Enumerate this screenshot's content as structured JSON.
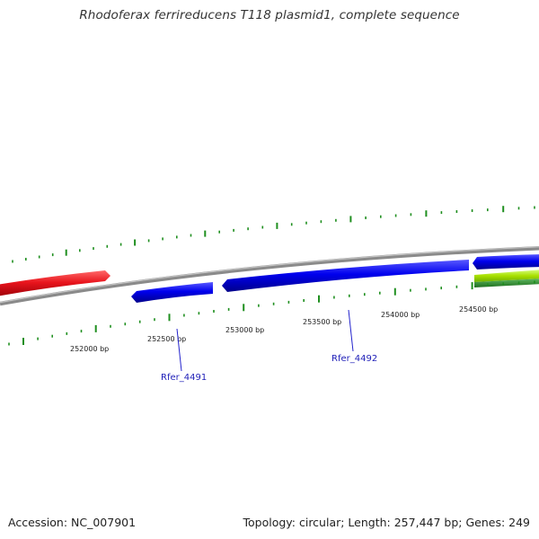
{
  "title": "Rhodoferax ferrireducens T118 plasmid1, complete sequence",
  "footer": {
    "accession": "Accession: NC_007901",
    "summary": "Topology: circular; Length: 257,447 bp; Genes: 249"
  },
  "scale_ticks": [
    {
      "label": "252000 bp",
      "bp": 252000
    },
    {
      "label": "252500 bp",
      "bp": 252500
    },
    {
      "label": "253000 bp",
      "bp": 253000
    },
    {
      "label": "253500 bp",
      "bp": 253500
    },
    {
      "label": "254000 bp",
      "bp": 254000
    },
    {
      "label": "254500 bp",
      "bp": 254500
    }
  ],
  "genes": [
    {
      "name": "Rfer_4491",
      "labeled": true,
      "color": "#0000ee"
    },
    {
      "name": "Rfer_4492",
      "labeled": true,
      "color": "#0000ee"
    }
  ],
  "colors": {
    "plus_strand_feature": "#e8141c",
    "minus_strand_feature": "#0000ee",
    "gc_high": "#a8e000",
    "gc_low": "#2e8b2e",
    "backbone": "#8a8a8a",
    "tick": "#1f8f1f",
    "label": "#1f1fb8"
  }
}
